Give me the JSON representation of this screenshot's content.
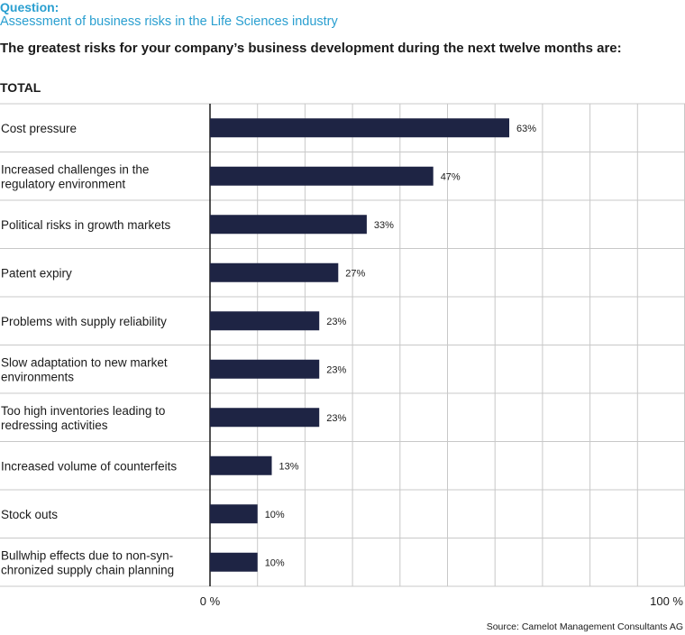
{
  "header": {
    "question_label": "Question:",
    "question_text": "Assessment of business risks in the Life Sciences industry",
    "subtitle": "The greatest risks for your company’s business development during the next twelve months are:",
    "group_label": "TOTAL"
  },
  "chart_data": {
    "type": "bar",
    "orientation": "horizontal",
    "title": "Assessment of business risks in the Life Sciences industry",
    "categories": [
      [
        "Cost pressure"
      ],
      [
        "Increased challenges in the",
        "regulatory environment"
      ],
      [
        "Political risks in growth markets"
      ],
      [
        "Patent expiry"
      ],
      [
        "Problems with supply reliability"
      ],
      [
        "Slow adaptation to new market",
        "environments"
      ],
      [
        "Too high inventories leading to",
        "redressing activities"
      ],
      [
        "Increased volume of counterfeits"
      ],
      [
        "Stock outs"
      ],
      [
        "Bullwhip effects due to non-syn-",
        "chronized supply chain planning"
      ]
    ],
    "values": [
      63,
      47,
      33,
      27,
      23,
      23,
      23,
      13,
      10,
      10
    ],
    "value_labels": [
      "63%",
      "47%",
      "33%",
      "27%",
      "23%",
      "23%",
      "23%",
      "13%",
      "10%",
      "10%"
    ],
    "xlim": [
      0,
      100
    ],
    "x_tick_labels": [
      "0 %",
      "100 %"
    ],
    "grid": true,
    "bar_color": "#1e2444"
  },
  "footer": {
    "source": "Source: Camelot Management Consultants AG"
  }
}
